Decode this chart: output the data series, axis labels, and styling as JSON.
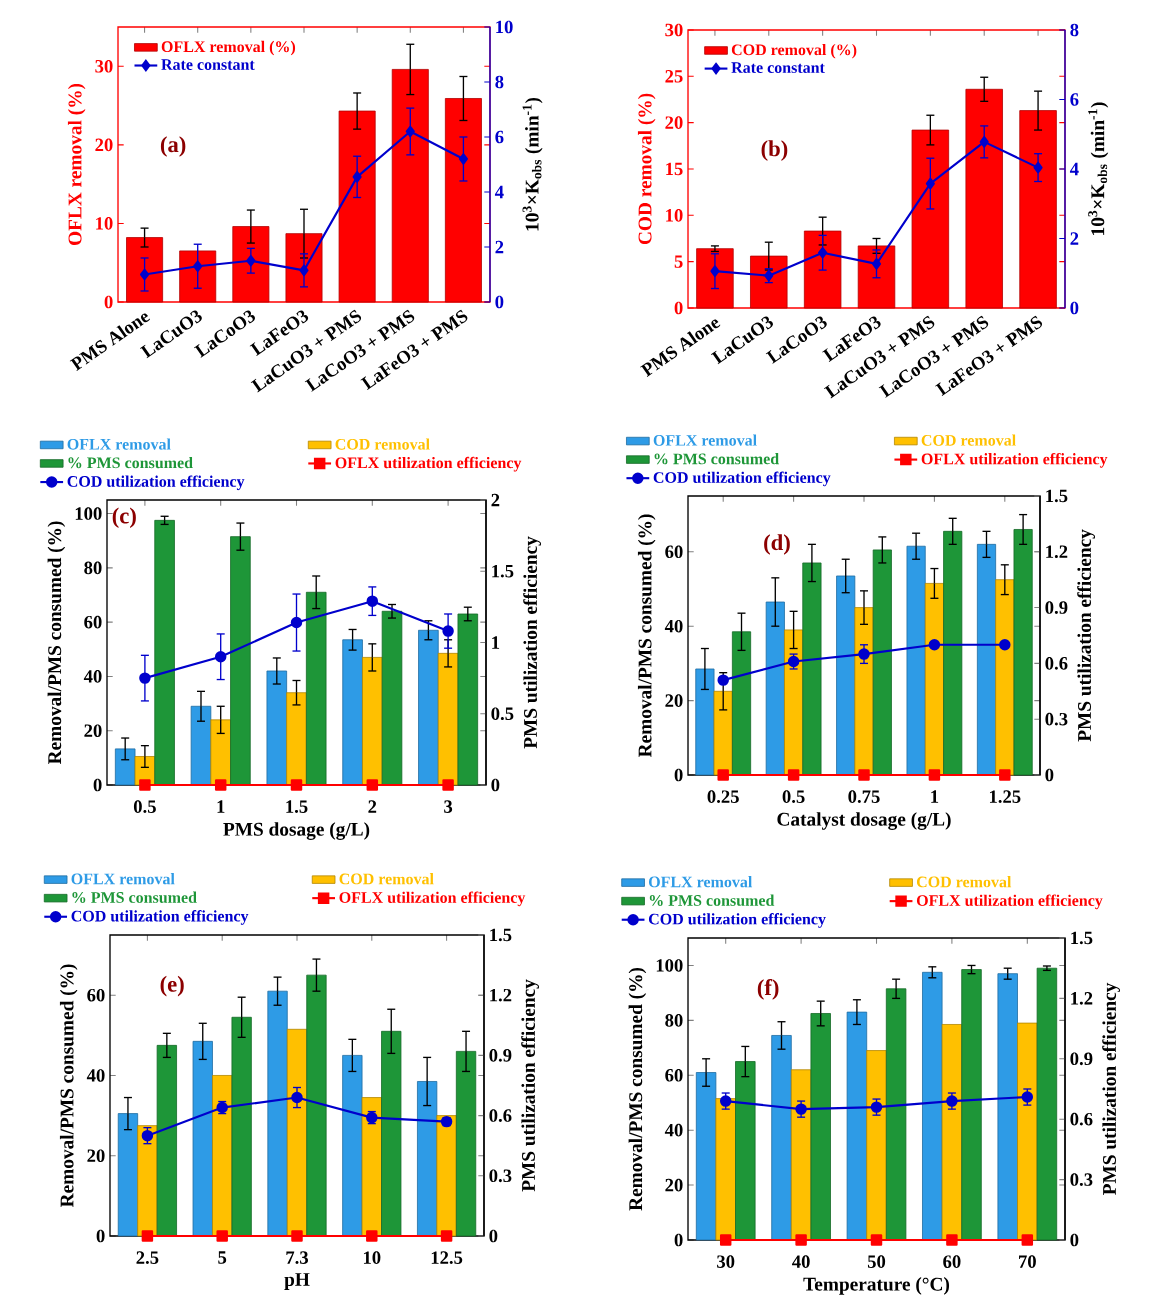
{
  "chart_data": [
    {
      "type": "bar",
      "categories": [
        "PMS Alone",
        "LaCuO3",
        "LaCoO3",
        "LaFeO3",
        "LaCuO3 + PMS",
        "LaCoO3 + PMS",
        "LaFeO3 + PMS"
      ],
      "ylabel": "OFLX removal (%)",
      "y2label": "10$^{3}$×K$_{obs}$ (min$^{-1}$)",
      "ylim": [
        0,
        35
      ],
      "yticks": [
        0,
        10,
        20,
        30
      ],
      "y2lim": [
        0,
        10
      ],
      "y2ticks": [
        0,
        2,
        4,
        6,
        8,
        10
      ],
      "legend": "top left",
      "annotations": [
        "(a)"
      ],
      "series": [
        {
          "name": "OFLX removal (%)",
          "color": "#ff0000",
          "values": [
            8.2,
            6.5,
            9.6,
            8.7,
            24.3,
            29.6,
            25.9
          ],
          "errors": [
            1.2,
            null,
            2.1,
            3.1,
            2.3,
            3.2,
            2.8
          ]
        },
        {
          "name": "Rate constant",
          "type": "line",
          "axis": "y2",
          "color": "#0000cc",
          "marker": "diamond",
          "values": [
            1.0,
            1.3,
            1.5,
            1.15,
            4.55,
            6.2,
            5.2
          ],
          "errors": [
            0.6,
            0.8,
            0.45,
            0.6,
            0.75,
            0.85,
            0.8
          ]
        }
      ]
    },
    {
      "type": "bar",
      "categories": [
        "PMS Alone",
        "LaCuO3",
        "LaCoO3",
        "LaFeO3",
        "LaCuO3 + PMS",
        "LaCoO3 + PMS",
        "LaFeO3 + PMS"
      ],
      "ylabel": "COD removal (%)",
      "y2label": "10$^{3}$×K$_{obs}$ (min$^{-1}$)",
      "ylim": [
        0,
        30
      ],
      "yticks": [
        0,
        5,
        10,
        15,
        20,
        25,
        30
      ],
      "y2lim": [
        0,
        8
      ],
      "y2ticks": [
        0,
        2,
        4,
        6,
        8
      ],
      "legend": "top left",
      "annotations": [
        "(b)"
      ],
      "series": [
        {
          "name": "COD removal (%)",
          "color": "#ff0000",
          "values": [
            6.4,
            5.6,
            8.3,
            6.7,
            19.2,
            23.6,
            21.3
          ],
          "errors": [
            0.3,
            1.5,
            1.5,
            0.8,
            1.6,
            1.3,
            2.1
          ]
        },
        {
          "name": "Rate constant",
          "type": "line",
          "axis": "y2",
          "color": "#0000cc",
          "marker": "diamond",
          "values": [
            1.06,
            0.93,
            1.59,
            1.27,
            3.58,
            4.78,
            4.04
          ],
          "errors": [
            0.5,
            0.2,
            0.5,
            0.4,
            0.73,
            0.46,
            0.4
          ]
        }
      ]
    },
    {
      "type": "bar",
      "categories": [
        "0.5",
        "1",
        "1.5",
        "2",
        "3"
      ],
      "xlabel": "PMS dosage (g/L)",
      "ylabel": "Removal/PMS consumed (%)",
      "y2label": "PMS utilization efficiency",
      "ylim": [
        0,
        105
      ],
      "yticks": [
        0,
        20,
        40,
        60,
        80,
        100
      ],
      "y2lim": [
        0,
        2
      ],
      "y2ticks": [
        0,
        0.5,
        1,
        1.5,
        2
      ],
      "legend": "top",
      "annotations": [
        "(c)"
      ],
      "series": [
        {
          "name": "OFLX removal",
          "color": "#2e9be6",
          "values": [
            13.3,
            29,
            42,
            53.5,
            57
          ],
          "errors": [
            4,
            5.5,
            4.8,
            3.8,
            3.5
          ]
        },
        {
          "name": "COD removal",
          "color": "#ffc000",
          "values": [
            10.5,
            24,
            34,
            47,
            48.5
          ],
          "errors": [
            4,
            5,
            4.5,
            5,
            5
          ]
        },
        {
          "name": "% PMS consumed",
          "color": "#1e9638",
          "values": [
            97.5,
            91.5,
            71,
            64,
            63
          ],
          "errors": [
            1.5,
            5,
            6,
            2.5,
            2.5
          ]
        },
        {
          "name": "OFLX utilization efficiency",
          "type": "line",
          "axis": "y2",
          "color": "#ff0000",
          "marker": "square",
          "values": [
            0,
            0,
            0,
            0,
            0
          ]
        },
        {
          "name": "COD utilization efficiency",
          "type": "line",
          "axis": "y2",
          "color": "#0000cc",
          "marker": "circle",
          "values": [
            0.75,
            0.9,
            1.14,
            1.29,
            1.08
          ],
          "errors": [
            0.16,
            0.16,
            0.2,
            0.1,
            0.12
          ]
        }
      ]
    },
    {
      "type": "bar",
      "categories": [
        "0.25",
        "0.5",
        "0.75",
        "1",
        "1.25"
      ],
      "xlabel": "Catalyst dosage (g/L)",
      "ylabel": "Removal/PMS consumed (%)",
      "y2label": "PMS utilization efficiency",
      "ylim": [
        0,
        75
      ],
      "yticks": [
        0,
        20,
        40,
        60
      ],
      "y2lim": [
        0,
        1.5
      ],
      "y2ticks": [
        0,
        0.3,
        0.6,
        0.9,
        1.2,
        1.5
      ],
      "legend": "top",
      "annotations": [
        "(d)"
      ],
      "series": [
        {
          "name": "OFLX removal",
          "color": "#2e9be6",
          "values": [
            28.5,
            46.5,
            53.5,
            61.5,
            62
          ],
          "errors": [
            5.5,
            6.5,
            4.5,
            3.5,
            3.5
          ]
        },
        {
          "name": "COD removal",
          "color": "#ffc000",
          "values": [
            22.5,
            39,
            45,
            51.5,
            52.5
          ],
          "errors": [
            5,
            5,
            4.5,
            4,
            4
          ]
        },
        {
          "name": "% PMS consumed",
          "color": "#1e9638",
          "values": [
            38.5,
            57,
            60.5,
            65.5,
            66
          ],
          "errors": [
            5,
            5,
            3.5,
            3.5,
            4
          ]
        },
        {
          "name": "OFLX utilization efficiency",
          "type": "line",
          "axis": "y2",
          "color": "#ff0000",
          "marker": "square",
          "values": [
            0,
            0,
            0,
            0,
            0
          ]
        },
        {
          "name": "COD utilization efficiency",
          "type": "line",
          "axis": "y2",
          "color": "#0000cc",
          "marker": "circle",
          "values": [
            0.51,
            0.61,
            0.65,
            0.7,
            0.7
          ],
          "errors": [
            null,
            0.04,
            0.05,
            null,
            null
          ]
        }
      ]
    },
    {
      "type": "bar",
      "categories": [
        "2.5",
        "5",
        "7.3",
        "10",
        "12.5"
      ],
      "xlabel": "pH",
      "ylabel": "Removal/PMS consumed (%)",
      "y2label": "PMS utilization efficiency",
      "ylim": [
        0,
        75
      ],
      "yticks": [
        0,
        20,
        40,
        60
      ],
      "y2lim": [
        0,
        1.5
      ],
      "y2ticks": [
        0,
        0.3,
        0.6,
        0.9,
        1.2,
        1.5
      ],
      "legend": "top",
      "annotations": [
        "(e)"
      ],
      "series": [
        {
          "name": "OFLX removal",
          "color": "#2e9be6",
          "values": [
            30.5,
            48.5,
            61,
            45,
            38.5
          ],
          "errors": [
            4,
            4.5,
            3.5,
            4,
            6
          ]
        },
        {
          "name": "COD removal",
          "color": "#ffc000",
          "values": [
            27.5,
            40,
            51.5,
            34.5,
            30
          ]
        },
        {
          "name": "% PMS consumed",
          "color": "#1e9638",
          "values": [
            47.5,
            54.5,
            65,
            51,
            46
          ],
          "errors": [
            3,
            5,
            4,
            5.5,
            5
          ]
        },
        {
          "name": "OFLX utilization efficiency",
          "type": "line",
          "axis": "y2",
          "color": "#ff0000",
          "marker": "square",
          "values": [
            0,
            0,
            0,
            0,
            0
          ]
        },
        {
          "name": "COD utilization efficiency",
          "type": "line",
          "axis": "y2",
          "color": "#0000cc",
          "marker": "circle",
          "values": [
            0.5,
            0.64,
            0.69,
            0.59,
            0.57
          ],
          "errors": [
            0.04,
            0.03,
            0.05,
            0.03,
            0.02
          ]
        }
      ]
    },
    {
      "type": "bar",
      "categories": [
        "30",
        "40",
        "50",
        "60",
        "70"
      ],
      "xlabel": "Temperature (°C)",
      "ylabel": "Removal/PMS consumed (%)",
      "y2label": "PMS utilization efficiency",
      "ylim": [
        0,
        110
      ],
      "yticks": [
        0,
        20,
        40,
        60,
        80,
        100
      ],
      "y2lim": [
        0,
        1.5
      ],
      "y2ticks": [
        0,
        0.3,
        0.6,
        0.9,
        1.2,
        1.5
      ],
      "legend": "top",
      "annotations": [
        "(f)"
      ],
      "series": [
        {
          "name": "OFLX removal",
          "color": "#2e9be6",
          "values": [
            61,
            74.5,
            83,
            97.5,
            97
          ],
          "errors": [
            5,
            5,
            4.5,
            2,
            2
          ]
        },
        {
          "name": "COD removal",
          "color": "#ffc000",
          "values": [
            51.5,
            62,
            69,
            78.5,
            79
          ]
        },
        {
          "name": "% PMS consumed",
          "color": "#1e9638",
          "values": [
            65,
            82.5,
            91.5,
            98.5,
            99
          ],
          "errors": [
            5.5,
            4.5,
            3.5,
            1.5,
            0.8
          ]
        },
        {
          "name": "OFLX utilization efficiency",
          "type": "line",
          "axis": "y2",
          "color": "#ff0000",
          "marker": "square",
          "values": [
            0,
            0,
            0,
            0,
            0
          ]
        },
        {
          "name": "COD utilization efficiency",
          "type": "line",
          "axis": "y2",
          "color": "#0000cc",
          "marker": "circle",
          "values": [
            0.69,
            0.65,
            0.66,
            0.69,
            0.71
          ],
          "errors": [
            0.04,
            0.04,
            0.04,
            0.04,
            0.04
          ]
        }
      ]
    }
  ]
}
